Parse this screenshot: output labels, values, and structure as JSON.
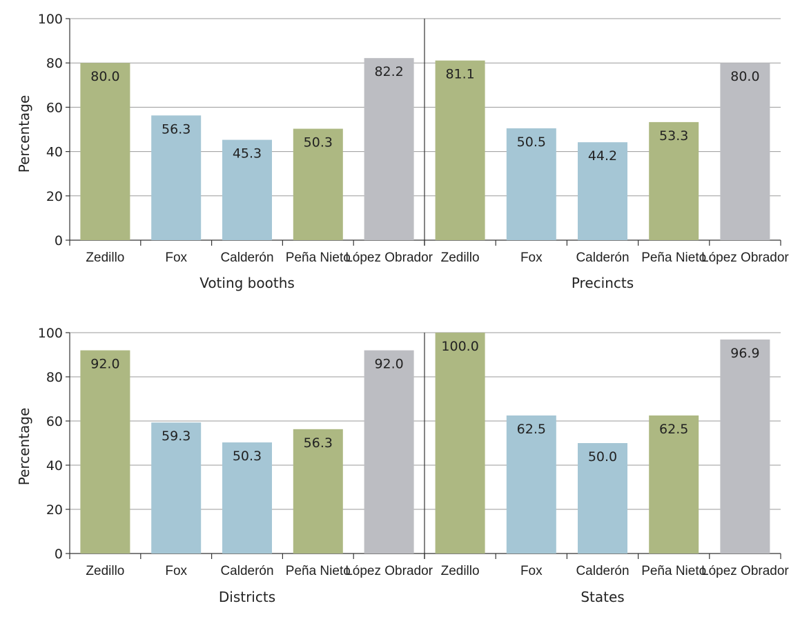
{
  "chart_data": [
    {
      "type": "bar",
      "ylabel": "Percentage",
      "ylim": [
        0,
        100
      ],
      "yticks": [
        "0",
        "20",
        "40",
        "60",
        "80",
        "100"
      ],
      "grid": true,
      "colors": {
        "Zedillo": "#adb882",
        "Fox": "#a5c6d5",
        "Calderón": "#a5c6d5",
        "Peña Nieto": "#adb882",
        "López Obrador": "#bcbdc2"
      },
      "panels": [
        {
          "group_label": "Voting booths",
          "categories": [
            "Zedillo",
            "Fox",
            "Calderón",
            "Peña Nieto",
            "López Obrador"
          ],
          "values": [
            80.0,
            56.3,
            45.3,
            50.3,
            82.2
          ],
          "value_labels": [
            "80.0",
            "56.3",
            "45.3",
            "50.3",
            "82.2"
          ]
        },
        {
          "group_label": "Precincts",
          "categories": [
            "Zedillo",
            "Fox",
            "Calderón",
            "Peña Nieto",
            "López Obrador"
          ],
          "values": [
            81.1,
            50.5,
            44.2,
            53.3,
            80.0
          ],
          "value_labels": [
            "81.1",
            "50.5",
            "44.2",
            "53.3",
            "80.0"
          ]
        }
      ]
    },
    {
      "type": "bar",
      "ylabel": "Percentage",
      "ylim": [
        0,
        100
      ],
      "yticks": [
        "0",
        "20",
        "40",
        "60",
        "80",
        "100"
      ],
      "grid": true,
      "colors": {
        "Zedillo": "#adb882",
        "Fox": "#a5c6d5",
        "Calderón": "#a5c6d5",
        "Peña Nieto": "#adb882",
        "López Obrador": "#bcbdc2"
      },
      "panels": [
        {
          "group_label": "Districts",
          "categories": [
            "Zedillo",
            "Fox",
            "Calderón",
            "Peña Nieto",
            "López Obrador"
          ],
          "values": [
            92.0,
            59.3,
            50.3,
            56.3,
            92.0
          ],
          "value_labels": [
            "92.0",
            "59.3",
            "50.3",
            "56.3",
            "92.0"
          ]
        },
        {
          "group_label": "States",
          "categories": [
            "Zedillo",
            "Fox",
            "Calderón",
            "Peña Nieto",
            "López Obrador"
          ],
          "values": [
            100.0,
            62.5,
            50.0,
            62.5,
            96.9
          ],
          "value_labels": [
            "100.0",
            "62.5",
            "50.0",
            "62.5",
            "96.9"
          ]
        }
      ]
    }
  ]
}
